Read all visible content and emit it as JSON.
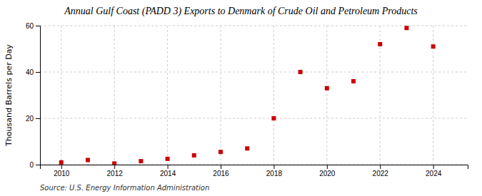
{
  "chart_data": {
    "type": "scatter",
    "title": "Annual Gulf Coast (PADD 3) Exports to Denmark of Crude Oil and Petroleum Products",
    "ylabel": "Thousand Barrels per Day",
    "annotations": [
      "Source: U.S. Energy Information Administration"
    ],
    "x": [
      2010,
      2011,
      2012,
      2013,
      2014,
      2015,
      2016,
      2017,
      2018,
      2019,
      2020,
      2021,
      2022,
      2023,
      2024
    ],
    "values": [
      1.0,
      2.0,
      0.5,
      1.5,
      2.5,
      4.0,
      5.5,
      7.0,
      20.0,
      40.0,
      33.0,
      36.0,
      52.0,
      59.0,
      51.0
    ],
    "color": "#cc0000",
    "marker": "square",
    "xlim": [
      2009.2,
      2025.3
    ],
    "xticks": [
      2010,
      2012,
      2014,
      2016,
      2018,
      2020,
      2022,
      2024
    ],
    "ylim": [
      0,
      60
    ],
    "yticks": [
      0,
      20,
      40,
      60
    ],
    "grid": true
  }
}
